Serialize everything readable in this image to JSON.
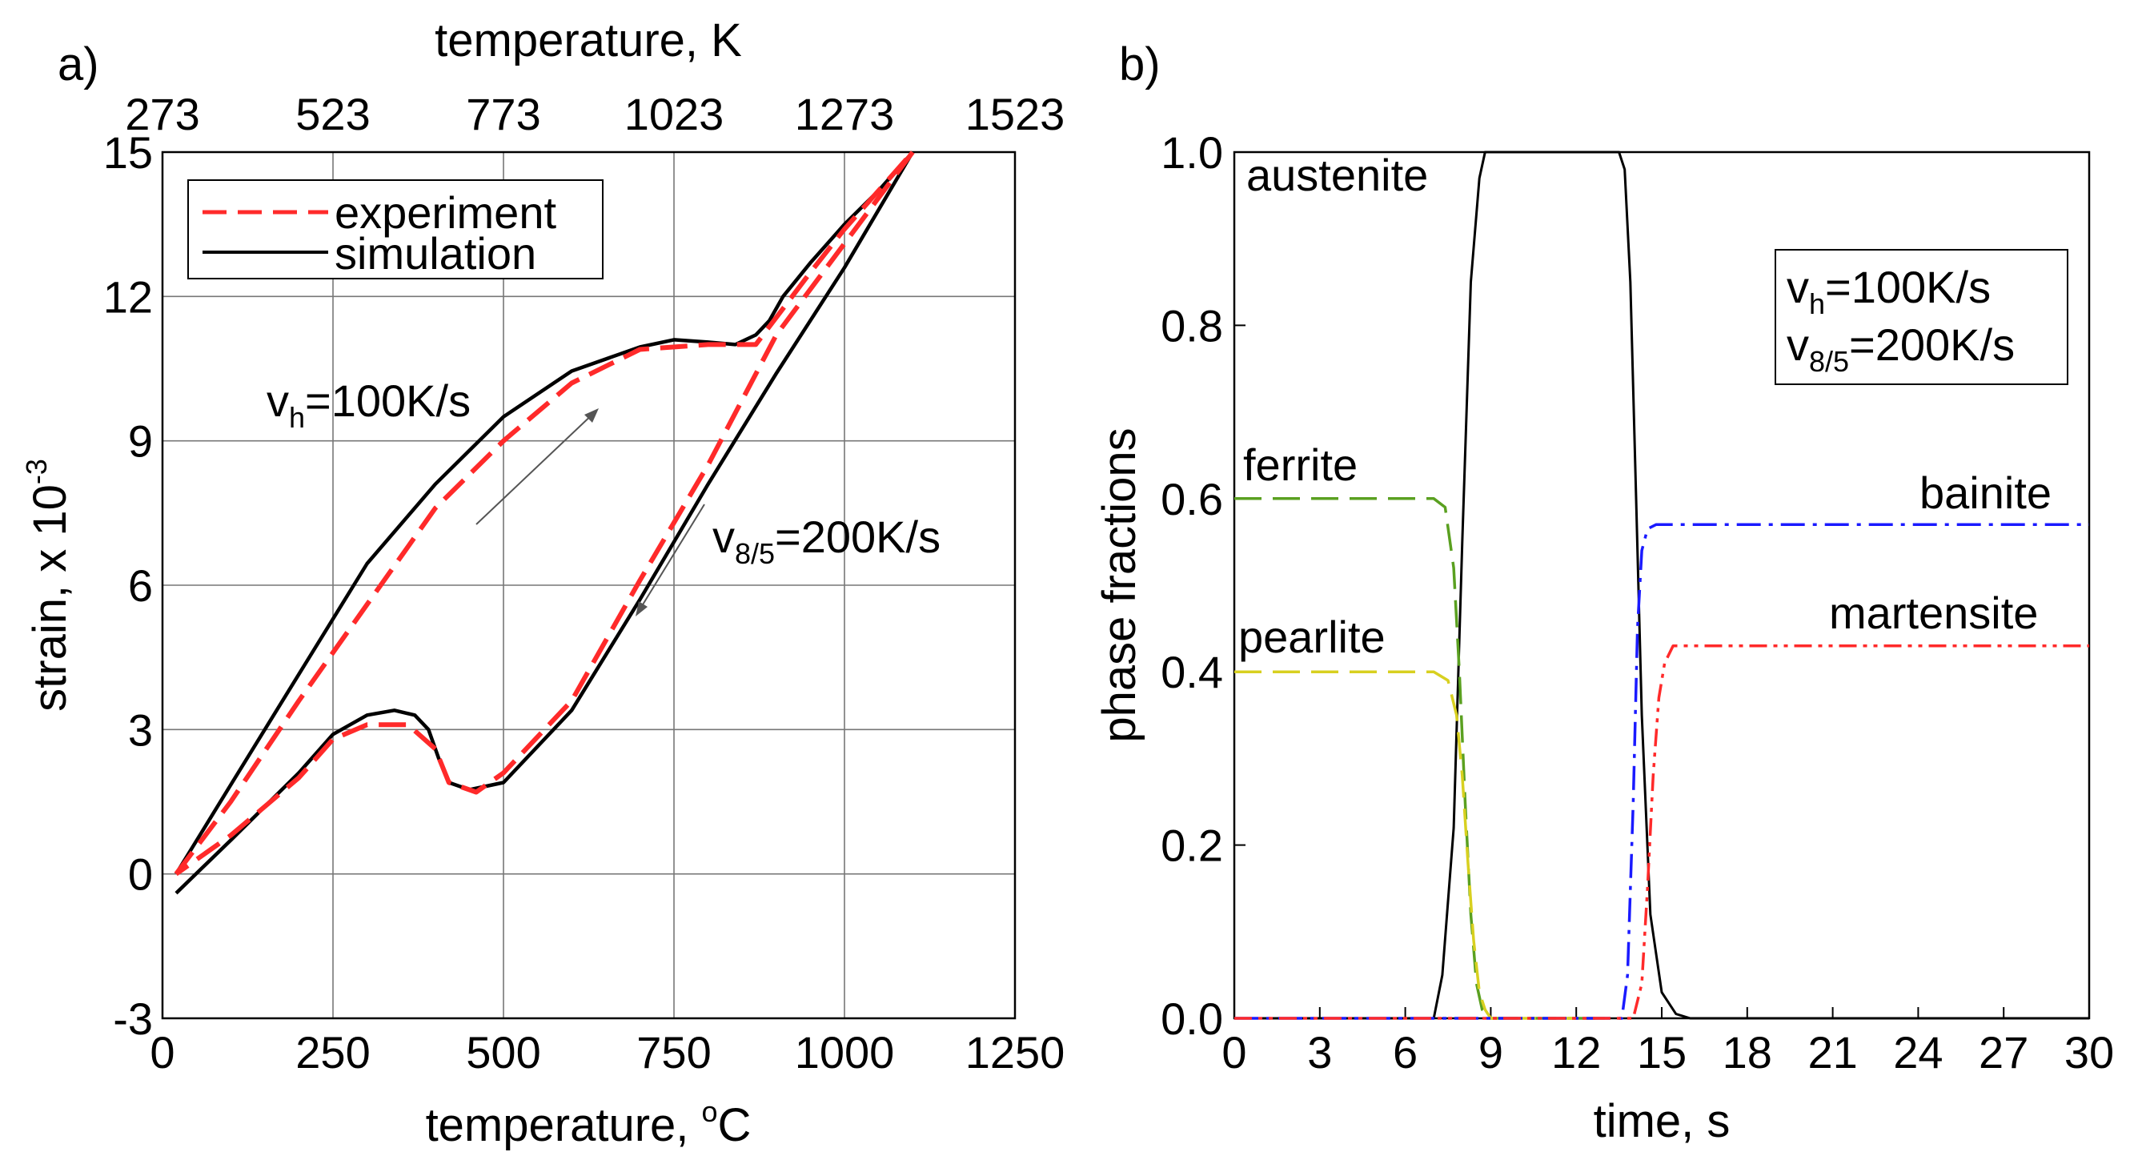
{
  "chart_data": [
    {
      "panel_label": "a)",
      "type": "line",
      "xlabel": "temperature, ",
      "xlabel_sup": "o",
      "xlabel_unit": "C",
      "top_xlabel": "temperature, K",
      "ylabel": "strain, x 10",
      "ylabel_sup": "-3",
      "xlim": [
        0,
        1250
      ],
      "ylim": [
        -3,
        15
      ],
      "xticks": [
        "0",
        "250",
        "500",
        "750",
        "1000",
        "1250"
      ],
      "top_xticks": [
        "273",
        "523",
        "773",
        "1023",
        "1273",
        "1523"
      ],
      "yticks": [
        "-3",
        "0",
        "3",
        "6",
        "9",
        "12",
        "15"
      ],
      "grid": true,
      "legend": [
        "experiment",
        "simulation"
      ],
      "legend_position": "top-left",
      "series": [
        {
          "name": "simulation",
          "color": "#000000",
          "style": "solid",
          "x": [
            20,
            100,
            200,
            300,
            400,
            500,
            600,
            700,
            750,
            800,
            840,
            870,
            890,
            910,
            950,
            1000,
            1050,
            1100
          ],
          "y": [
            0,
            1.85,
            4.15,
            6.45,
            8.1,
            9.5,
            10.45,
            10.95,
            11.1,
            11.05,
            11.0,
            11.2,
            11.5,
            12.0,
            12.7,
            13.5,
            14.2,
            15.0
          ]
        },
        {
          "name": "simulation",
          "color": "#000000",
          "style": "solid",
          "x": [
            1100,
            1000,
            900,
            800,
            700,
            600,
            500,
            450,
            420,
            405,
            390,
            370,
            340,
            300,
            250,
            200,
            100,
            20
          ],
          "y": [
            15.0,
            12.6,
            10.4,
            8.1,
            5.7,
            3.4,
            1.9,
            1.75,
            1.9,
            2.4,
            3.0,
            3.3,
            3.4,
            3.3,
            2.9,
            2.1,
            0.7,
            -0.4
          ]
        },
        {
          "name": "experiment",
          "color": "#ff2a2a",
          "style": "dashed",
          "x": [
            20,
            100,
            200,
            300,
            400,
            500,
            600,
            700,
            800,
            870,
            950,
            1000,
            1100
          ],
          "y": [
            0,
            1.5,
            3.6,
            5.6,
            7.6,
            9.0,
            10.2,
            10.9,
            11.0,
            11.0,
            12.5,
            13.4,
            15.0
          ]
        },
        {
          "name": "experiment",
          "color": "#ff2a2a",
          "style": "dashed",
          "x": [
            1100,
            1000,
            900,
            800,
            700,
            600,
            500,
            460,
            420,
            400,
            360,
            300,
            250,
            200,
            100,
            20
          ],
          "y": [
            15.0,
            13.1,
            11.2,
            8.5,
            6.1,
            3.6,
            2.1,
            1.7,
            1.9,
            2.6,
            3.1,
            3.1,
            2.8,
            2.0,
            0.8,
            0
          ]
        }
      ],
      "annotations": [
        {
          "text": "v",
          "sub": "h",
          "rest": "=100K/s"
        },
        {
          "text": "v",
          "sub": "8/5",
          "rest": "=200K/s"
        }
      ]
    },
    {
      "panel_label": "b)",
      "type": "line",
      "xlabel": "time, s",
      "ylabel": "phase fractions",
      "xlim": [
        0,
        30
      ],
      "ylim": [
        0,
        1
      ],
      "xticks": [
        "0",
        "3",
        "6",
        "9",
        "12",
        "15",
        "18",
        "21",
        "24",
        "27",
        "30"
      ],
      "yticks": [
        "0.0",
        "0.2",
        "0.4",
        "0.6",
        "0.8",
        "1.0"
      ],
      "grid": false,
      "series": [
        {
          "name": "austenite",
          "color": "#000000",
          "style": "solid",
          "x": [
            0,
            7.0,
            7.3,
            7.7,
            8.0,
            8.3,
            8.6,
            8.8,
            9.0,
            13.5,
            13.7,
            13.9,
            14.1,
            14.3,
            14.6,
            15.0,
            15.5,
            16.0,
            30
          ],
          "y": [
            0,
            0,
            0.05,
            0.22,
            0.55,
            0.85,
            0.97,
            1.0,
            1.0,
            1.0,
            0.98,
            0.85,
            0.6,
            0.35,
            0.12,
            0.03,
            0.005,
            0,
            0
          ]
        },
        {
          "name": "ferrite",
          "color": "#5aa020",
          "style": "dashed",
          "x": [
            0,
            7.0,
            7.4,
            7.7,
            7.9,
            8.1,
            8.3,
            8.5,
            8.7,
            9.0,
            13.0
          ],
          "y": [
            0.6,
            0.6,
            0.59,
            0.52,
            0.4,
            0.25,
            0.12,
            0.04,
            0.01,
            0,
            0
          ]
        },
        {
          "name": "pearlite",
          "color": "#d8d020",
          "style": "dashed",
          "x": [
            0,
            7.0,
            7.5,
            7.8,
            8.0,
            8.2,
            8.4,
            8.6,
            8.8,
            9.0,
            13.0
          ],
          "y": [
            0.4,
            0.4,
            0.39,
            0.35,
            0.28,
            0.18,
            0.09,
            0.03,
            0.01,
            0,
            0
          ]
        },
        {
          "name": "bainite",
          "color": "#1a1aff",
          "style": "dashdot",
          "x": [
            0,
            13.6,
            13.8,
            14.0,
            14.15,
            14.3,
            14.5,
            14.8,
            30
          ],
          "y": [
            0,
            0,
            0.05,
            0.25,
            0.45,
            0.54,
            0.565,
            0.57,
            0.57
          ]
        },
        {
          "name": "martensite",
          "color": "#ff2a2a",
          "style": "dashdotdot",
          "x": [
            0,
            14.0,
            14.3,
            14.5,
            14.7,
            14.9,
            15.1,
            15.4,
            16.0,
            30
          ],
          "y": [
            0,
            0,
            0.04,
            0.15,
            0.28,
            0.37,
            0.41,
            0.43,
            0.43,
            0.43
          ]
        }
      ],
      "phase_labels": [
        "austenite",
        "ferrite",
        "pearlite",
        "bainite",
        "martensite"
      ],
      "annotations": [
        {
          "text": "v",
          "sub": "h",
          "rest": "=100K/s"
        },
        {
          "text": "v",
          "sub": "8/5",
          "rest": "=200K/s"
        }
      ]
    }
  ]
}
